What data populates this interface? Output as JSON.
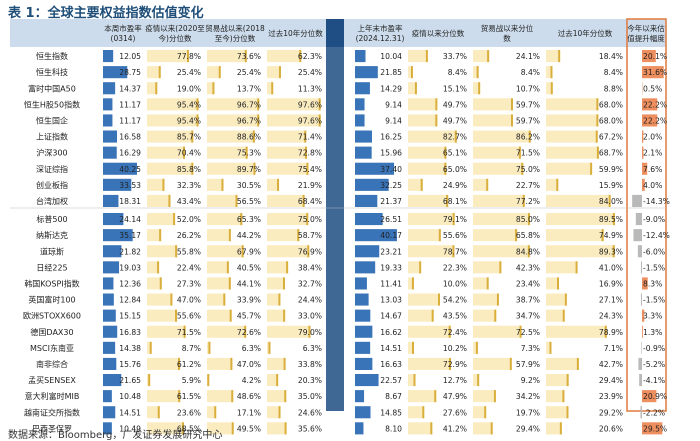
{
  "title": "表 1：全球主要权益指数估值变化",
  "source": "数据来源：Bloomberg，广发证券发展研究中心",
  "colors": {
    "header_bg": "#ccdcec",
    "header_dark": "#1e4e83",
    "blue_bar": "#3a74b8",
    "gold_bar": "#d9ae3b",
    "gold_light": "#fbecc0",
    "pos_bar": "#e76a2a",
    "neg_bar": "#b9b9b9",
    "border_orange": "#e07a3c"
  },
  "chart_data": {
    "type": "table",
    "columns": [
      "本周市盈率(0314)",
      "疫情以来(2020至今)分位数",
      "贸易战以来(2018至今)分位数",
      "过去10年分位数",
      "上年末市盈率(2024.12.31)",
      "疫情以来分位数",
      "贸易战以来分位数",
      "过去10年分位数",
      "今年以来估值提升幅度"
    ],
    "groups": [
      {
        "rows": [
          {
            "name": "恒生指数",
            "values": [
              "12.05",
              "77.8%",
              "73.6%",
              "62.3%",
              "10.04",
              "33.7%",
              "24.1%",
              "18.4%",
              "20.1%"
            ]
          },
          {
            "name": "恒生科技",
            "values": [
              "28.75",
              "25.4%",
              "25.4%",
              "25.4%",
              "21.85",
              "8.4%",
              "8.4%",
              "8.4%",
              "31.6%"
            ]
          },
          {
            "name": "富时中国A50",
            "values": [
              "14.37",
              "19.0%",
              "13.7%",
              "11.3%",
              "14.29",
              "15.1%",
              "10.7%",
              "8.8%",
              "0.5%"
            ]
          },
          {
            "name": "恒生H股50指数",
            "values": [
              "11.17",
              "95.4%",
              "96.7%",
              "97.6%",
              "9.14",
              "49.7%",
              "59.7%",
              "68.0%",
              "22.2%"
            ]
          },
          {
            "name": "恒生国企",
            "values": [
              "11.17",
              "95.4%",
              "96.7%",
              "97.6%",
              "9.14",
              "49.7%",
              "59.7%",
              "68.0%",
              "22.2%"
            ]
          },
          {
            "name": "上证指数",
            "values": [
              "16.58",
              "85.7%",
              "88.6%",
              "71.4%",
              "16.25",
              "82.7%",
              "86.2%",
              "67.2%",
              "2.0%"
            ]
          },
          {
            "name": "沪深300",
            "values": [
              "16.29",
              "70.4%",
              "75.3%",
              "72.8%",
              "15.96",
              "65.1%",
              "71.5%",
              "68.7%",
              "2.1%"
            ]
          },
          {
            "name": "深证综指",
            "values": [
              "40.25",
              "85.8%",
              "89.7%",
              "75.4%",
              "37.40",
              "65.0%",
              "75.0%",
              "59.9%",
              "7.6%"
            ]
          },
          {
            "name": "创业板指",
            "values": [
              "33.53",
              "32.3%",
              "30.5%",
              "21.9%",
              "32.25",
              "24.9%",
              "22.7%",
              "15.9%",
              "4.0%"
            ]
          },
          {
            "name": "台湾加权",
            "values": [
              "18.31",
              "43.4%",
              "56.5%",
              "68.4%",
              "21.37",
              "68.1%",
              "77.2%",
              "84.0%",
              "-14.3%"
            ]
          }
        ]
      },
      {
        "rows": [
          {
            "name": "标普500",
            "values": [
              "24.14",
              "52.0%",
              "65.3%",
              "75.0%",
              "26.51",
              "79.1%",
              "85.0%",
              "89.5%",
              "-9.0%"
            ]
          },
          {
            "name": "纳斯达克",
            "values": [
              "35.17",
              "26.2%",
              "44.2%",
              "58.7%",
              "40.17",
              "55.6%",
              "65.8%",
              "74.9%",
              "-12.4%"
            ]
          },
          {
            "name": "道琼斯",
            "values": [
              "21.82",
              "55.8%",
              "67.9%",
              "76.9%",
              "23.21",
              "78.7%",
              "84.8%",
              "89.3%",
              "-6.0%"
            ]
          },
          {
            "name": "日经225",
            "values": [
              "19.03",
              "22.4%",
              "40.5%",
              "38.4%",
              "19.33",
              "22.3%",
              "42.3%",
              "41.0%",
              "-1.5%"
            ]
          },
          {
            "name": "韩国KOSPI指数",
            "values": [
              "12.36",
              "27.3%",
              "44.1%",
              "32.7%",
              "11.41",
              "10.0%",
              "23.4%",
              "16.9%",
              "8.3%"
            ]
          },
          {
            "name": "英国富时100",
            "values": [
              "12.84",
              "47.0%",
              "33.9%",
              "24.4%",
              "13.03",
              "54.2%",
              "38.7%",
              "27.1%",
              "-1.5%"
            ]
          },
          {
            "name": "欧洲STOXX600",
            "values": [
              "15.15",
              "55.6%",
              "45.7%",
              "33.0%",
              "14.67",
              "43.5%",
              "34.7%",
              "24.3%",
              "3.3%"
            ]
          },
          {
            "name": "德国DAX30",
            "values": [
              "16.83",
              "71.5%",
              "72.6%",
              "79.0%",
              "16.62",
              "72.4%",
              "72.5%",
              "78.9%",
              "1.3%"
            ]
          },
          {
            "name": "MSCI东南亚",
            "values": [
              "14.38",
              "8.7%",
              "6.3%",
              "6.3%",
              "14.51",
              "10.2%",
              "7.3%",
              "7.1%",
              "-0.9%"
            ]
          },
          {
            "name": "南非综合",
            "values": [
              "15.76",
              "61.2%",
              "47.0%",
              "33.8%",
              "16.63",
              "72.9%",
              "57.9%",
              "42.7%",
              "-5.2%"
            ]
          },
          {
            "name": "孟买SENSEX",
            "values": [
              "21.65",
              "5.9%",
              "4.2%",
              "20.3%",
              "22.57",
              "12.7%",
              "9.2%",
              "29.4%",
              "-4.1%"
            ]
          },
          {
            "name": "意大利富时MIB",
            "values": [
              "10.48",
              "61.5%",
              "48.6%",
              "35.0%",
              "8.67",
              "47.9%",
              "34.2%",
              "23.9%",
              "20.9%"
            ]
          },
          {
            "name": "越南证交所指数",
            "values": [
              "14.51",
              "23.6%",
              "17.1%",
              "24.6%",
              "14.85",
              "27.6%",
              "19.7%",
              "29.2%",
              "-2.2%"
            ]
          },
          {
            "name": "巴西圣保罗",
            "values": [
              "10.49",
              "68.5%",
              "49.5%",
              "35.6%",
              "8.10",
              "41.2%",
              "29.4%",
              "20.6%",
              "29.5%"
            ]
          }
        ]
      }
    ]
  }
}
